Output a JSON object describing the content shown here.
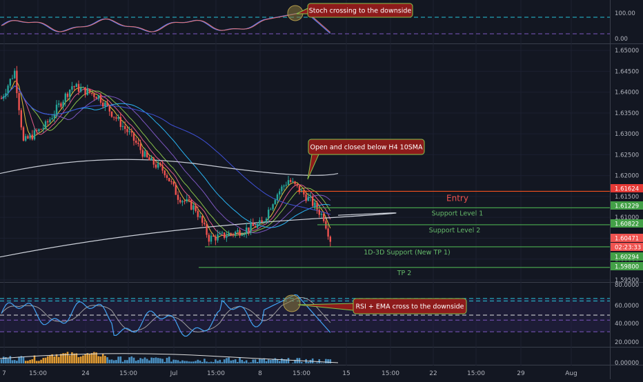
{
  "chart_data": {
    "type": "candlestick",
    "symbol": "",
    "main": {
      "ylim": [
        1.5945,
        1.6515
      ],
      "y_ticks": [
        "1.65000",
        "1.64500",
        "1.64000",
        "1.63500",
        "1.63000",
        "1.62500",
        "1.62000",
        "1.61500",
        "1.61000",
        "1.60500",
        "1.60000",
        "1.59500"
      ],
      "price_badges": [
        {
          "label": "1.61624",
          "color": "#e53935"
        },
        {
          "label": "1.61229",
          "color": "#43a047"
        },
        {
          "label": "1.60822",
          "color": "#43a047"
        },
        {
          "label": "1.60471",
          "color": "#ef5350"
        },
        {
          "label": "02:23:33",
          "color": "#ef5350"
        },
        {
          "label": "1.60294",
          "color": "#43a047"
        },
        {
          "label": "1.59800",
          "color": "#43a047"
        }
      ],
      "levels": [
        {
          "name": "Entry",
          "price": 1.61624,
          "color": "#f4511e"
        },
        {
          "name": "Support Level 1",
          "price": 1.61229,
          "color": "#4caf50"
        },
        {
          "name": "Support Level 2",
          "price": 1.60822,
          "color": "#4caf50"
        },
        {
          "name": "1D-3D Support (New TP 1)",
          "price": 1.60294,
          "color": "#4caf50"
        },
        {
          "name": "TP 2",
          "price": 1.598,
          "color": "#4caf50"
        }
      ],
      "annotations": [
        {
          "text": "Open and closed below H4 10SMA"
        }
      ]
    },
    "stoch": {
      "y_ticks": [
        "100.00",
        "0.00"
      ],
      "annotation": "Stoch crossing to the downside"
    },
    "rsi": {
      "y_ticks": [
        "80.0000",
        "60.0000",
        "40.0000",
        "20.0000"
      ],
      "annotation": "RSI + EMA cross to the downside"
    },
    "volume": {
      "y_ticks": [
        "0.00000"
      ]
    },
    "x_ticks": [
      "7",
      "15:00",
      "24",
      "15:00",
      "Jul",
      "15:00",
      "8",
      "15:00",
      "15",
      "15:00",
      "22",
      "15:00",
      "29",
      "Aug"
    ],
    "colors": {
      "up": "#26a69a",
      "down": "#ef5350",
      "background": "#131722",
      "grid": "#1e2230"
    }
  }
}
